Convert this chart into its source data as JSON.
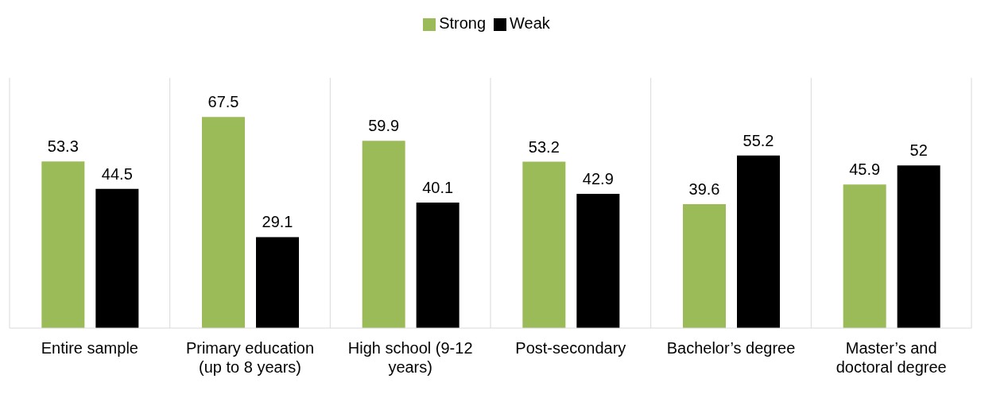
{
  "chart_data": {
    "type": "bar",
    "categories": [
      "Entire sample",
      "Primary education (up to 8 years)",
      "High school (9-12 years)",
      "Post-secondary",
      "Bachelor’s degree",
      "Master’s and doctoral degree"
    ],
    "series": [
      {
        "name": "Strong",
        "color": "#9bbb59",
        "values": [
          53.3,
          67.5,
          59.9,
          53.2,
          39.6,
          45.9
        ]
      },
      {
        "name": "Weak",
        "color": "#000000",
        "values": [
          44.5,
          29.1,
          40.1,
          42.9,
          55.2,
          52
        ]
      }
    ],
    "ylim": [
      0,
      80
    ],
    "data_labels": true,
    "legend": "top",
    "grid": "x",
    "tick_labels": "x"
  }
}
